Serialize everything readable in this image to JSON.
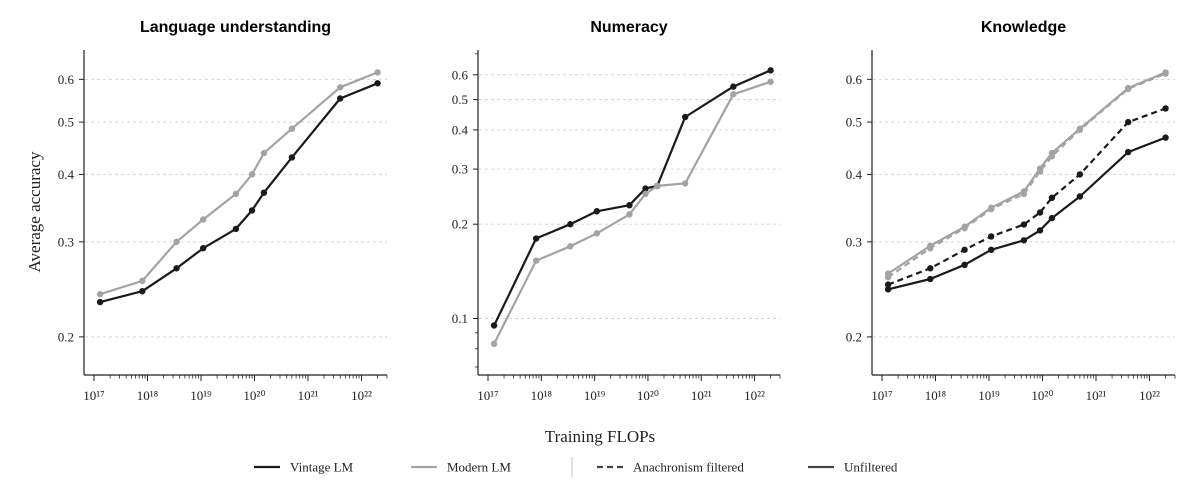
{
  "figure": {
    "ylabel": "Average accuracy",
    "xlabel": "Training FLOPs"
  },
  "colors": {
    "vintage": "#1a1a1a",
    "modern": "#a3a3a3",
    "grid": "#d4d4d4"
  },
  "legend": [
    {
      "key": "vintage",
      "label": "Vintage LM",
      "style": "solid",
      "color": "#1a1a1a"
    },
    {
      "key": "modern",
      "label": "Modern LM",
      "style": "solid",
      "color": "#a3a3a3"
    },
    {
      "key": "filtered",
      "label": "Anachronism filtered",
      "style": "dashed",
      "color": "#444444"
    },
    {
      "key": "unfiltered",
      "label": "Unfiltered",
      "style": "solid",
      "color": "#444444"
    }
  ],
  "chart_data": [
    {
      "type": "line",
      "title": "Language understanding",
      "x_scale": "log",
      "y_scale": "log",
      "xlim": [
        1e+17,
        3e+22
      ],
      "ylim": [
        0.17,
        0.68
      ],
      "x_ticks": [
        1e+17,
        1e+18,
        1e+19,
        1e+20,
        1e+21,
        1e+22
      ],
      "y_ticks": [
        0.2,
        0.3,
        0.4,
        0.5,
        0.6
      ],
      "grid": "y",
      "series": [
        {
          "name": "Vintage LM",
          "color": "#1a1a1a",
          "style": "solid",
          "x": [
            1.3e+17,
            8e+17,
            3.5e+18,
            1.1e+19,
            4.5e+19,
            9e+19,
            1.5e+20,
            5e+20,
            4e+21,
            2e+22
          ],
          "y": [
            0.232,
            0.243,
            0.268,
            0.292,
            0.317,
            0.343,
            0.37,
            0.43,
            0.553,
            0.59
          ]
        },
        {
          "name": "Modern LM",
          "color": "#a3a3a3",
          "style": "solid",
          "x": [
            1.3e+17,
            8e+17,
            3.5e+18,
            1.1e+19,
            4.5e+19,
            9e+19,
            1.5e+20,
            5e+20,
            4e+21,
            2e+22
          ],
          "y": [
            0.24,
            0.254,
            0.3,
            0.33,
            0.368,
            0.4,
            0.438,
            0.486,
            0.58,
            0.618
          ]
        }
      ]
    },
    {
      "type": "line",
      "title": "Numeracy",
      "x_scale": "log",
      "y_scale": "log",
      "xlim": [
        1e+17,
        3e+22
      ],
      "ylim": [
        0.066,
        0.72
      ],
      "x_ticks": [
        1e+17,
        1e+18,
        1e+19,
        1e+20,
        1e+21,
        1e+22
      ],
      "y_ticks": [
        0.1,
        0.2,
        0.3,
        0.4,
        0.5,
        0.6
      ],
      "grid": "y",
      "series": [
        {
          "name": "Vintage LM",
          "color": "#1a1a1a",
          "style": "solid",
          "x": [
            1.3e+17,
            8e+17,
            3.5e+18,
            1.1e+19,
            4.5e+19,
            9e+19,
            1.5e+20,
            5e+20,
            4e+21,
            2e+22
          ],
          "y": [
            0.095,
            0.18,
            0.2,
            0.22,
            0.23,
            0.26,
            0.265,
            0.44,
            0.55,
            0.62
          ]
        },
        {
          "name": "Modern LM",
          "color": "#a3a3a3",
          "style": "solid",
          "x": [
            1.3e+17,
            8e+17,
            3.5e+18,
            1.1e+19,
            4.5e+19,
            9e+19,
            1.5e+20,
            5e+20,
            4e+21,
            2e+22
          ],
          "y": [
            0.083,
            0.153,
            0.17,
            0.187,
            0.215,
            0.25,
            0.265,
            0.27,
            0.52,
            0.57
          ]
        }
      ]
    },
    {
      "type": "line",
      "title": "Knowledge",
      "x_scale": "log",
      "y_scale": "log",
      "xlim": [
        1e+17,
        3e+22
      ],
      "ylim": [
        0.17,
        0.68
      ],
      "x_ticks": [
        1e+17,
        1e+18,
        1e+19,
        1e+20,
        1e+21,
        1e+22
      ],
      "y_ticks": [
        0.2,
        0.3,
        0.4,
        0.5,
        0.6
      ],
      "grid": "y",
      "series": [
        {
          "name": "Vintage LM, Unfiltered",
          "color": "#1a1a1a",
          "style": "solid",
          "x": [
            1.3e+17,
            8e+17,
            3.5e+18,
            1.1e+19,
            4.5e+19,
            9e+19,
            1.5e+20,
            5e+20,
            4e+21,
            2e+22
          ],
          "y": [
            0.245,
            0.256,
            0.272,
            0.29,
            0.302,
            0.315,
            0.332,
            0.364,
            0.44,
            0.468
          ]
        },
        {
          "name": "Vintage LM, Anachronism filtered",
          "color": "#1a1a1a",
          "style": "dashed",
          "x": [
            1.3e+17,
            8e+17,
            3.5e+18,
            1.1e+19,
            4.5e+19,
            9e+19,
            1.5e+20,
            5e+20,
            4e+21,
            2e+22
          ],
          "y": [
            0.25,
            0.268,
            0.29,
            0.307,
            0.323,
            0.34,
            0.362,
            0.4,
            0.5,
            0.53
          ]
        },
        {
          "name": "Modern LM, Unfiltered",
          "color": "#a3a3a3",
          "style": "solid",
          "x": [
            1.3e+17,
            8e+17,
            3.5e+18,
            1.1e+19,
            4.5e+19,
            9e+19,
            1.5e+20,
            5e+20,
            4e+21,
            2e+22
          ],
          "y": [
            0.262,
            0.295,
            0.32,
            0.347,
            0.372,
            0.41,
            0.438,
            0.486,
            0.578,
            0.618
          ]
        },
        {
          "name": "Modern LM, Anachronism filtered",
          "color": "#a3a3a3",
          "style": "dashed",
          "x": [
            1.3e+17,
            8e+17,
            3.5e+18,
            1.1e+19,
            4.5e+19,
            9e+19,
            1.5e+20,
            5e+20,
            4e+21,
            2e+22
          ],
          "y": [
            0.258,
            0.292,
            0.318,
            0.345,
            0.368,
            0.405,
            0.432,
            0.484,
            0.576,
            0.615
          ]
        }
      ]
    }
  ]
}
